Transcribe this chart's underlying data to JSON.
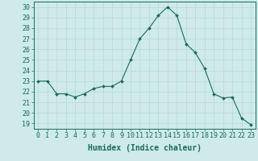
{
  "x": [
    0,
    1,
    2,
    3,
    4,
    5,
    6,
    7,
    8,
    9,
    10,
    11,
    12,
    13,
    14,
    15,
    16,
    17,
    18,
    19,
    20,
    21,
    22,
    23
  ],
  "y": [
    23.0,
    23.0,
    21.8,
    21.8,
    21.5,
    21.8,
    22.3,
    22.5,
    22.5,
    23.0,
    25.0,
    27.0,
    28.0,
    29.2,
    30.0,
    29.2,
    26.5,
    25.7,
    24.2,
    21.8,
    21.4,
    21.5,
    19.5,
    18.9
  ],
  "line_color": "#1a6b5a",
  "marker": "D",
  "marker_size": 2.0,
  "bg_color": "#ceeaea",
  "grid_color": "#b8d8d8",
  "xlabel": "Humidex (Indice chaleur)",
  "xlim": [
    -0.5,
    23.5
  ],
  "ylim": [
    18.5,
    30.5
  ],
  "yticks": [
    19,
    20,
    21,
    22,
    23,
    24,
    25,
    26,
    27,
    28,
    29,
    30
  ],
  "xticks": [
    0,
    1,
    2,
    3,
    4,
    5,
    6,
    7,
    8,
    9,
    10,
    11,
    12,
    13,
    14,
    15,
    16,
    17,
    18,
    19,
    20,
    21,
    22,
    23
  ],
  "tick_color": "#1a6b5a",
  "label_color": "#1a6b5a",
  "xlabel_fontsize": 7,
  "tick_fontsize": 6
}
